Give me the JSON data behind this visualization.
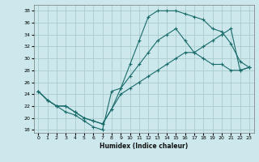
{
  "xlabel": "Humidex (Indice chaleur)",
  "ylabel": "",
  "background_color": "#cce8ec",
  "grid_color": "#aacccc",
  "line_color": "#1a6b6b",
  "xlim": [
    -0.5,
    23.5
  ],
  "ylim": [
    17.5,
    39
  ],
  "xticks": [
    0,
    1,
    2,
    3,
    4,
    5,
    6,
    7,
    8,
    9,
    10,
    11,
    12,
    13,
    14,
    15,
    16,
    17,
    18,
    19,
    20,
    21,
    22,
    23
  ],
  "yticks": [
    18,
    20,
    22,
    24,
    26,
    28,
    30,
    32,
    34,
    36,
    38
  ],
  "line1_x": [
    0,
    1,
    2,
    3,
    4,
    5,
    6,
    7,
    8,
    9,
    10,
    11,
    12,
    13,
    14,
    15,
    16,
    17,
    18,
    19,
    20,
    21,
    22,
    23
  ],
  "line1_y": [
    24.5,
    23,
    22,
    21,
    20.5,
    19.5,
    18.5,
    18,
    24.5,
    25,
    29,
    33,
    37,
    38,
    38,
    38,
    37.5,
    37,
    36.5,
    35,
    34.5,
    32.5,
    29.5,
    28.5
  ],
  "line2_x": [
    0,
    1,
    2,
    3,
    4,
    5,
    6,
    7,
    8,
    9,
    10,
    11,
    12,
    13,
    14,
    15,
    16,
    17,
    18,
    19,
    20,
    21,
    22,
    23
  ],
  "line2_y": [
    24.5,
    23,
    22,
    22,
    21,
    20,
    19.5,
    19,
    21.5,
    25,
    27,
    29,
    31,
    33,
    34,
    35,
    33,
    31,
    30,
    29,
    29,
    28,
    28,
    28.5
  ],
  "line3_x": [
    0,
    1,
    2,
    3,
    4,
    5,
    6,
    7,
    8,
    9,
    10,
    11,
    12,
    13,
    14,
    15,
    16,
    17,
    18,
    19,
    20,
    21,
    22,
    23
  ],
  "line3_y": [
    24.5,
    23,
    22,
    22,
    21,
    20,
    19.5,
    19,
    21.5,
    24,
    25,
    26,
    27,
    28,
    29,
    30,
    31,
    31,
    32,
    33,
    34,
    35,
    28,
    28.5
  ]
}
